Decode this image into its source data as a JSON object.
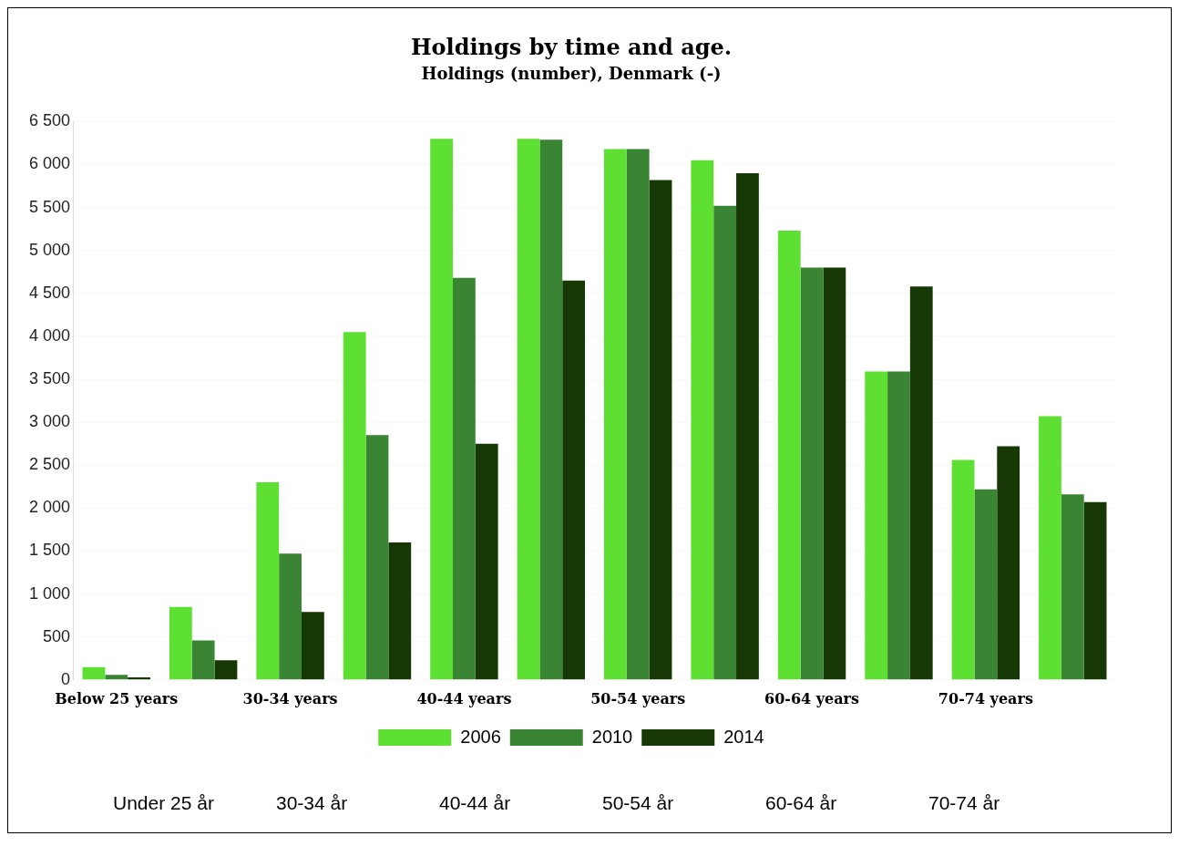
{
  "chart_data": {
    "type": "bar",
    "title": "Holdings by time and age.",
    "subtitle": "Holdings (number), Denmark (-)",
    "categories": [
      "Below 25 years",
      null,
      "30-34 years",
      null,
      "40-44 years",
      null,
      "50-54 years",
      null,
      "60-64 years",
      null,
      "70-74 years",
      null
    ],
    "series": [
      {
        "name": "2006",
        "color": "#5ee033",
        "values": [
          150,
          850,
          2300,
          4050,
          6300,
          6300,
          6180,
          6050,
          5230,
          3590,
          2560,
          3070
        ]
      },
      {
        "name": "2010",
        "color": "#3a8534",
        "values": [
          60,
          460,
          1470,
          2850,
          4680,
          6290,
          6180,
          5520,
          4800,
          3590,
          2220,
          2160
        ]
      },
      {
        "name": "2014",
        "color": "#153804",
        "values": [
          30,
          230,
          790,
          1600,
          2750,
          4650,
          5820,
          5900,
          4800,
          4580,
          2720,
          2070
        ]
      }
    ],
    "ylim": [
      0,
      6500
    ],
    "yticks": [
      {
        "value": 0,
        "label": "0"
      },
      {
        "value": 500,
        "label": "500"
      },
      {
        "value": 1000,
        "label": "1 000"
      },
      {
        "value": 1500,
        "label": "1 500"
      },
      {
        "value": 2000,
        "label": "2 000"
      },
      {
        "value": 2500,
        "label": "2 500"
      },
      {
        "value": 3000,
        "label": "3 000"
      },
      {
        "value": 3500,
        "label": "3 500"
      },
      {
        "value": 4000,
        "label": "4 000"
      },
      {
        "value": 4500,
        "label": "4 500"
      },
      {
        "value": 5000,
        "label": "5 000"
      },
      {
        "value": 5500,
        "label": "5 500"
      },
      {
        "value": 6000,
        "label": "6 000"
      },
      {
        "value": 6500,
        "label": "6 500"
      }
    ],
    "grid": "y",
    "legend": "bottom",
    "annotations": [
      "Under 25 år",
      "30-34 år",
      "40-44 år",
      "50-54 år",
      "60-64 år",
      "70-74 år"
    ]
  }
}
